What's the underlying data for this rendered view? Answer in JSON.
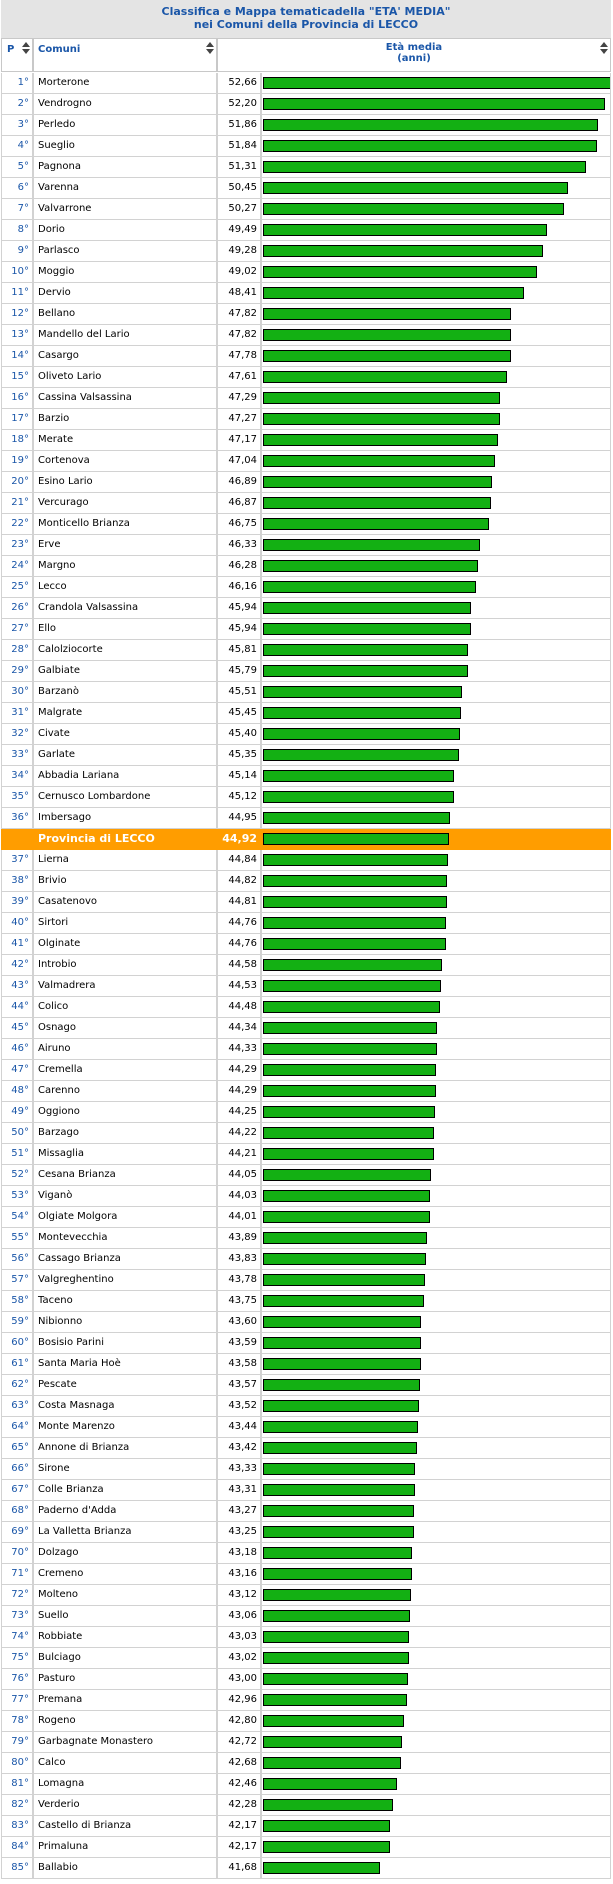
{
  "title": {
    "line1": "Classifica e Mappa tematicadella \"ETA' MEDIA\"",
    "line2": "nei Comuni della Provincia di LECCO"
  },
  "header": {
    "rank": "P",
    "name": "Comuni",
    "value_line1": "Età media",
    "value_line2": "(anni)"
  },
  "chart_data": {
    "type": "bar",
    "orientation": "horizontal",
    "title": "Classifica e Mappa tematicadella \"ETA' MEDIA\" nei Comuni della Provincia di LECCO",
    "xlabel": "Età media (anni)",
    "highlight_color": "#ff9d00",
    "bar_color": "#13b013",
    "rows": [
      {
        "rank": "1°",
        "name": "Morterone",
        "value": "52,66"
      },
      {
        "rank": "2°",
        "name": "Vendrogno",
        "value": "52,20"
      },
      {
        "rank": "3°",
        "name": "Perledo",
        "value": "51,86"
      },
      {
        "rank": "4°",
        "name": "Sueglio",
        "value": "51,84"
      },
      {
        "rank": "5°",
        "name": "Pagnona",
        "value": "51,31"
      },
      {
        "rank": "6°",
        "name": "Varenna",
        "value": "50,45"
      },
      {
        "rank": "7°",
        "name": "Valvarrone",
        "value": "50,27"
      },
      {
        "rank": "8°",
        "name": "Dorio",
        "value": "49,49"
      },
      {
        "rank": "9°",
        "name": "Parlasco",
        "value": "49,28"
      },
      {
        "rank": "10°",
        "name": "Moggio",
        "value": "49,02"
      },
      {
        "rank": "11°",
        "name": "Dervio",
        "value": "48,41"
      },
      {
        "rank": "12°",
        "name": "Bellano",
        "value": "47,82"
      },
      {
        "rank": "13°",
        "name": "Mandello del Lario",
        "value": "47,82"
      },
      {
        "rank": "14°",
        "name": "Casargo",
        "value": "47,78"
      },
      {
        "rank": "15°",
        "name": "Oliveto Lario",
        "value": "47,61"
      },
      {
        "rank": "16°",
        "name": "Cassina Valsassina",
        "value": "47,29"
      },
      {
        "rank": "17°",
        "name": "Barzio",
        "value": "47,27"
      },
      {
        "rank": "18°",
        "name": "Merate",
        "value": "47,17"
      },
      {
        "rank": "19°",
        "name": "Cortenova",
        "value": "47,04"
      },
      {
        "rank": "20°",
        "name": "Esino Lario",
        "value": "46,89"
      },
      {
        "rank": "21°",
        "name": "Vercurago",
        "value": "46,87"
      },
      {
        "rank": "22°",
        "name": "Monticello Brianza",
        "value": "46,75"
      },
      {
        "rank": "23°",
        "name": "Erve",
        "value": "46,33"
      },
      {
        "rank": "24°",
        "name": "Margno",
        "value": "46,28"
      },
      {
        "rank": "25°",
        "name": "Lecco",
        "value": "46,16"
      },
      {
        "rank": "26°",
        "name": "Crandola Valsassina",
        "value": "45,94"
      },
      {
        "rank": "27°",
        "name": "Ello",
        "value": "45,94"
      },
      {
        "rank": "28°",
        "name": "Calolziocorte",
        "value": "45,81"
      },
      {
        "rank": "29°",
        "name": "Galbiate",
        "value": "45,79"
      },
      {
        "rank": "30°",
        "name": "Barzanò",
        "value": "45,51"
      },
      {
        "rank": "31°",
        "name": "Malgrate",
        "value": "45,45"
      },
      {
        "rank": "32°",
        "name": "Civate",
        "value": "45,40"
      },
      {
        "rank": "33°",
        "name": "Garlate",
        "value": "45,35"
      },
      {
        "rank": "34°",
        "name": "Abbadia Lariana",
        "value": "45,14"
      },
      {
        "rank": "35°",
        "name": "Cernusco Lombardone",
        "value": "45,12"
      },
      {
        "rank": "36°",
        "name": "Imbersago",
        "value": "44,95"
      },
      {
        "rank": "",
        "name": "Provincia di LECCO",
        "value": "44,92",
        "highlight": true
      },
      {
        "rank": "37°",
        "name": "Lierna",
        "value": "44,84"
      },
      {
        "rank": "38°",
        "name": "Brivio",
        "value": "44,82"
      },
      {
        "rank": "39°",
        "name": "Casatenovo",
        "value": "44,81"
      },
      {
        "rank": "40°",
        "name": "Sirtori",
        "value": "44,76"
      },
      {
        "rank": "41°",
        "name": "Olginate",
        "value": "44,76"
      },
      {
        "rank": "42°",
        "name": "Introbio",
        "value": "44,58"
      },
      {
        "rank": "43°",
        "name": "Valmadrera",
        "value": "44,53"
      },
      {
        "rank": "44°",
        "name": "Colico",
        "value": "44,48"
      },
      {
        "rank": "45°",
        "name": "Osnago",
        "value": "44,34"
      },
      {
        "rank": "46°",
        "name": "Airuno",
        "value": "44,33"
      },
      {
        "rank": "47°",
        "name": "Cremella",
        "value": "44,29"
      },
      {
        "rank": "48°",
        "name": "Carenno",
        "value": "44,29"
      },
      {
        "rank": "49°",
        "name": "Oggiono",
        "value": "44,25"
      },
      {
        "rank": "50°",
        "name": "Barzago",
        "value": "44,22"
      },
      {
        "rank": "51°",
        "name": "Missaglia",
        "value": "44,21"
      },
      {
        "rank": "52°",
        "name": "Cesana Brianza",
        "value": "44,05"
      },
      {
        "rank": "53°",
        "name": "Viganò",
        "value": "44,03"
      },
      {
        "rank": "54°",
        "name": "Olgiate Molgora",
        "value": "44,01"
      },
      {
        "rank": "55°",
        "name": "Montevecchia",
        "value": "43,89"
      },
      {
        "rank": "56°",
        "name": "Cassago Brianza",
        "value": "43,83"
      },
      {
        "rank": "57°",
        "name": "Valgreghentino",
        "value": "43,78"
      },
      {
        "rank": "58°",
        "name": "Taceno",
        "value": "43,75"
      },
      {
        "rank": "59°",
        "name": "Nibionno",
        "value": "43,60"
      },
      {
        "rank": "60°",
        "name": "Bosisio Parini",
        "value": "43,59"
      },
      {
        "rank": "61°",
        "name": "Santa Maria Hoè",
        "value": "43,58"
      },
      {
        "rank": "62°",
        "name": "Pescate",
        "value": "43,57"
      },
      {
        "rank": "63°",
        "name": "Costa Masnaga",
        "value": "43,52"
      },
      {
        "rank": "64°",
        "name": "Monte Marenzo",
        "value": "43,44"
      },
      {
        "rank": "65°",
        "name": "Annone di Brianza",
        "value": "43,42"
      },
      {
        "rank": "66°",
        "name": "Sirone",
        "value": "43,33"
      },
      {
        "rank": "67°",
        "name": "Colle Brianza",
        "value": "43,31"
      },
      {
        "rank": "68°",
        "name": "Paderno d'Adda",
        "value": "43,27"
      },
      {
        "rank": "69°",
        "name": "La Valletta Brianza",
        "value": "43,25"
      },
      {
        "rank": "70°",
        "name": "Dolzago",
        "value": "43,18"
      },
      {
        "rank": "71°",
        "name": "Cremeno",
        "value": "43,16"
      },
      {
        "rank": "72°",
        "name": "Molteno",
        "value": "43,12"
      },
      {
        "rank": "73°",
        "name": "Suello",
        "value": "43,06"
      },
      {
        "rank": "74°",
        "name": "Robbiate",
        "value": "43,03"
      },
      {
        "rank": "75°",
        "name": "Bulciago",
        "value": "43,02"
      },
      {
        "rank": "76°",
        "name": "Pasturo",
        "value": "43,00"
      },
      {
        "rank": "77°",
        "name": "Premana",
        "value": "42,96"
      },
      {
        "rank": "78°",
        "name": "Rogeno",
        "value": "42,80"
      },
      {
        "rank": "79°",
        "name": "Garbagnate Monastero",
        "value": "42,72"
      },
      {
        "rank": "80°",
        "name": "Calco",
        "value": "42,68"
      },
      {
        "rank": "81°",
        "name": "Lomagna",
        "value": "42,46"
      },
      {
        "rank": "82°",
        "name": "Verderio",
        "value": "42,28"
      },
      {
        "rank": "83°",
        "name": "Castello di Brianza",
        "value": "42,17"
      },
      {
        "rank": "84°",
        "name": "Primaluna",
        "value": "42,17"
      },
      {
        "rank": "85°",
        "name": "Ballabio",
        "value": "41,68"
      }
    ]
  }
}
